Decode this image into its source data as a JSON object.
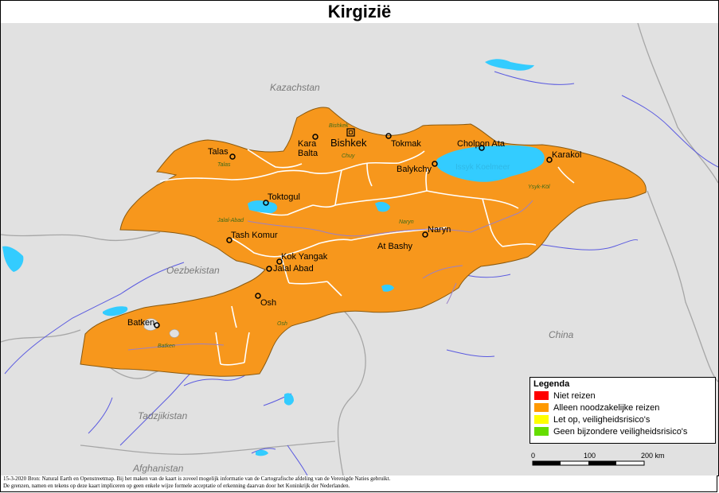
{
  "title": "Kirgizië",
  "countries": {
    "kazakhstan": "Kazachstan",
    "uzbekistan": "Oezbekistan",
    "tajikistan": "Tadzjikistan",
    "afghanistan": "Afghanistan",
    "china": "China"
  },
  "capital": "Bishkek",
  "cities": {
    "talas": "Talas",
    "kara_balta": "Kara\nBalta",
    "tokmak": "Tokmak",
    "cholpon_ata": "Cholpon Ata",
    "karakol": "Karakol",
    "balykchy": "Balykchy",
    "toktogul": "Toktogul",
    "tash_komur": "Tash Komur",
    "naryn": "Naryn",
    "at_bashy": "At Bashy",
    "kok_yangak": "Kok Yangak",
    "jalal_abad": "Jalal Abad",
    "osh": "Osh",
    "batken": "Batken"
  },
  "regions": {
    "bishkek": "Bishkek",
    "chuy": "Chuy",
    "talas": "Talas",
    "jalal_abad": "Jalal-Abad",
    "naryn": "Naryn",
    "ysyk_kol": "Ysyk-Köl",
    "osh": "Osh",
    "batken": "Batken"
  },
  "lake": "Issyk Koelmeer",
  "legend": {
    "title": "Legenda",
    "items": [
      {
        "label": "Niet reizen",
        "color": "#ff0000"
      },
      {
        "label": "Alleen noodzakelijke reizen",
        "color": "#ff9900"
      },
      {
        "label": "Let op, veiligheidsrisico's",
        "color": "#ffff00"
      },
      {
        "label": "Geen bijzondere veiligheidsrisico's",
        "color": "#66dd00"
      }
    ]
  },
  "scale": {
    "ticks": [
      "0",
      "100",
      "200 km"
    ]
  },
  "footer": {
    "line1": "15-3-2020 Bron: Natural Earth en Openstreetmap. Bij het maken van de kaart is zoveel mogelijk informatie van de Cartografische afdeling van de Verenigde Naties gebruikt.",
    "line2": "De grenzen, namen en tekens op deze kaart impliceren op geen enkele wijze formele acceptatie of erkenning daarvan door het Koninkrijk der Nederlanden."
  },
  "colors": {
    "country_fill": "#f7971c",
    "neighbor_fill": "#e1e1e1",
    "border_gray": "#a6a6a6",
    "water": "#33ccff",
    "river": "#5a5ae0"
  }
}
